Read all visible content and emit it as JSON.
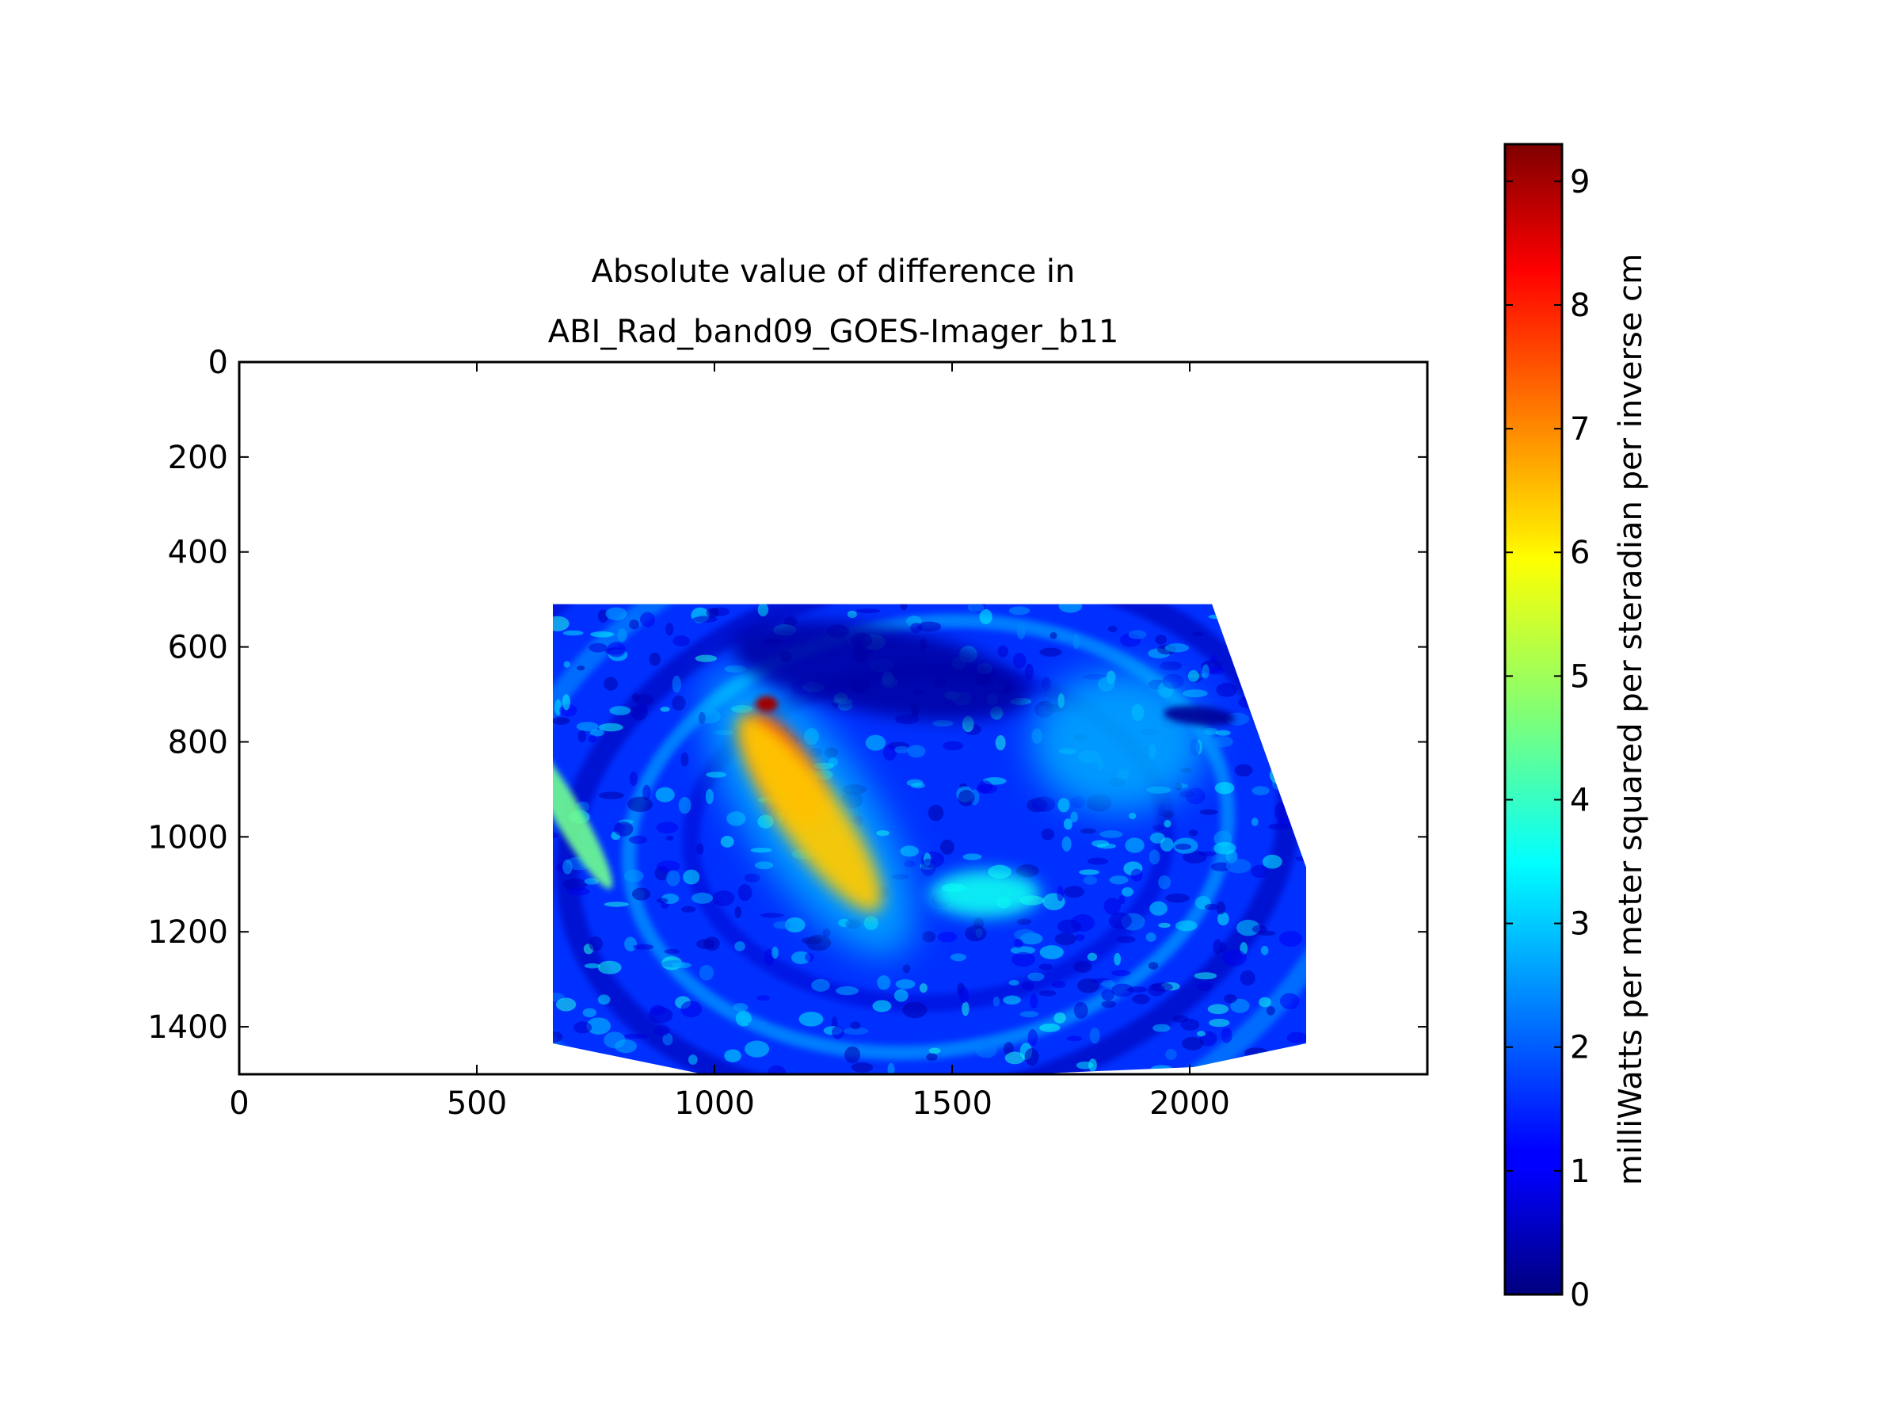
{
  "chart_data": {
    "type": "heatmap",
    "title": "Absolute value of difference in\nABI_Rad_band09_GOES-Imager_b11",
    "title_lines": [
      "Absolute value of difference in",
      "ABI_Rad_band09_GOES-Imager_b11"
    ],
    "xlabel": "",
    "ylabel": "",
    "xlim": [
      0,
      2500
    ],
    "ylim": [
      1500,
      0
    ],
    "y_inverted": true,
    "x_ticks": [
      0,
      500,
      1000,
      1500,
      2000
    ],
    "y_ticks": [
      0,
      200,
      400,
      600,
      800,
      1000,
      1200,
      1400
    ],
    "grid": false,
    "colormap": "jet",
    "colorbar": {
      "label": "milliWatts per meter squared per steradian per inverse cm",
      "range": [
        0,
        9.3
      ],
      "ticks": [
        0,
        1,
        2,
        3,
        4,
        5,
        6,
        7,
        8,
        9
      ],
      "placement": "right"
    },
    "data_region": {
      "x_range": [
        660,
        2245
      ],
      "y_range": [
        510,
        1500
      ],
      "background_value": 1.6
    },
    "features": [
      {
        "name": "hotspot-plume",
        "x": 1150,
        "y": 860,
        "value": 8.0
      },
      {
        "name": "plume-tail",
        "x": 1200,
        "y": 950,
        "value": 6.3
      },
      {
        "name": "plume-top",
        "x": 1110,
        "y": 720,
        "value": 9.0
      },
      {
        "name": "left-edge-band",
        "x": 690,
        "y": 950,
        "value": 4.5
      },
      {
        "name": "cyan-patch",
        "x": 1570,
        "y": 1120,
        "value": 3.6
      },
      {
        "name": "ne-patch",
        "x": 1850,
        "y": 800,
        "value": 2.8
      },
      {
        "name": "dark-swirl-north",
        "x": 1350,
        "y": 650,
        "value": 0.3
      },
      {
        "name": "dark-spot-east",
        "x": 2020,
        "y": 745,
        "value": 0.2
      }
    ]
  }
}
